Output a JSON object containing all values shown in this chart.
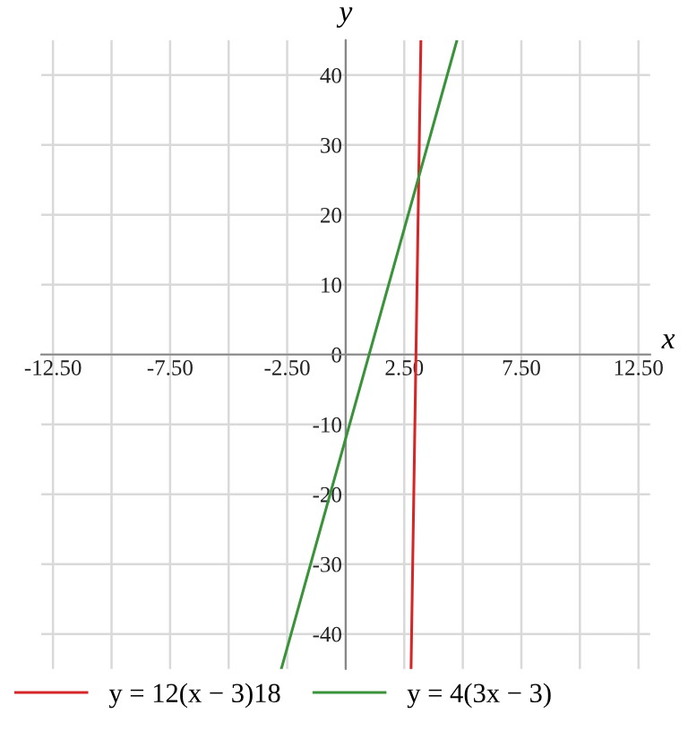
{
  "chart_data": {
    "type": "line",
    "xlabel": "x",
    "ylabel": "y",
    "series": [
      {
        "name": "y = 12(x − 3)18",
        "color": "#d62728",
        "x": [
          2.79,
          3.21
        ],
        "values": [
          -45,
          45
        ]
      },
      {
        "name": "y = 4(3x − 3)",
        "color": "#3a923a",
        "x": [
          -2.75,
          4.75
        ],
        "values": [
          -45,
          45
        ]
      }
    ],
    "xlim": [
      -13,
      13
    ],
    "ylim": [
      -45,
      45
    ],
    "xticks": [
      {
        "value": -12.5,
        "label": "-12.50"
      },
      {
        "value": -10,
        "label": null
      },
      {
        "value": -7.5,
        "label": "-7.50"
      },
      {
        "value": -5,
        "label": null
      },
      {
        "value": -2.5,
        "label": "-2.50"
      },
      {
        "value": 0,
        "label": null
      },
      {
        "value": 2.5,
        "label": "2.50"
      },
      {
        "value": 5,
        "label": null
      },
      {
        "value": 7.5,
        "label": "7.50"
      },
      {
        "value": 10,
        "label": null
      },
      {
        "value": 12.5,
        "label": "12.50"
      }
    ],
    "yticks": [
      {
        "value": -40,
        "label": "-40"
      },
      {
        "value": -30,
        "label": "-30"
      },
      {
        "value": -20,
        "label": "-20"
      },
      {
        "value": -10,
        "label": "-10"
      },
      0,
      10,
      20,
      30,
      40
    ],
    "grid": true,
    "legend": "bottom",
    "marker": "none",
    "line_style": "solid"
  }
}
